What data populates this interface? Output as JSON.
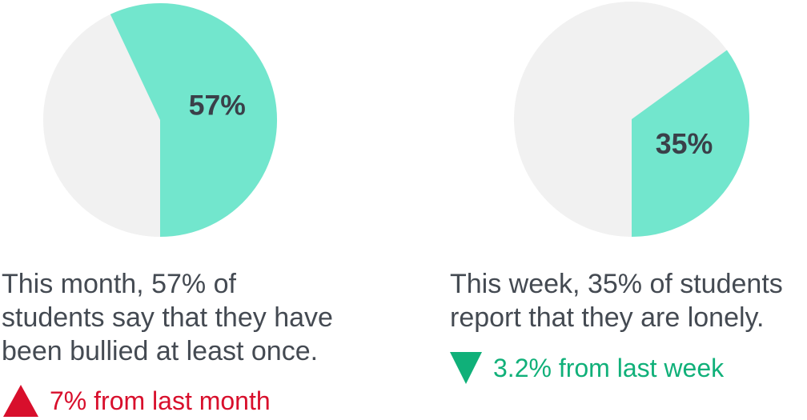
{
  "chart_data": [
    {
      "type": "pie",
      "highlight_value": 57,
      "remainder_value": 43,
      "label": "57%",
      "colors": {
        "highlight": "#72e6cd",
        "remainder": "#f1f1f1"
      },
      "caption_lines": [
        "This month, 57% of",
        "students say that they have",
        "been bullied at least once."
      ],
      "change": {
        "direction": "up",
        "text": "7% from last month",
        "color": "#d80f2c"
      }
    },
    {
      "type": "pie",
      "highlight_value": 35,
      "remainder_value": 65,
      "label": "35%",
      "colors": {
        "highlight": "#72e6cd",
        "remainder": "#f1f1f1"
      },
      "caption_lines": [
        "This week, 35% of students",
        "report that they are lonely."
      ],
      "change": {
        "direction": "down",
        "text": "3.2% from last week",
        "color": "#10b079"
      }
    }
  ]
}
